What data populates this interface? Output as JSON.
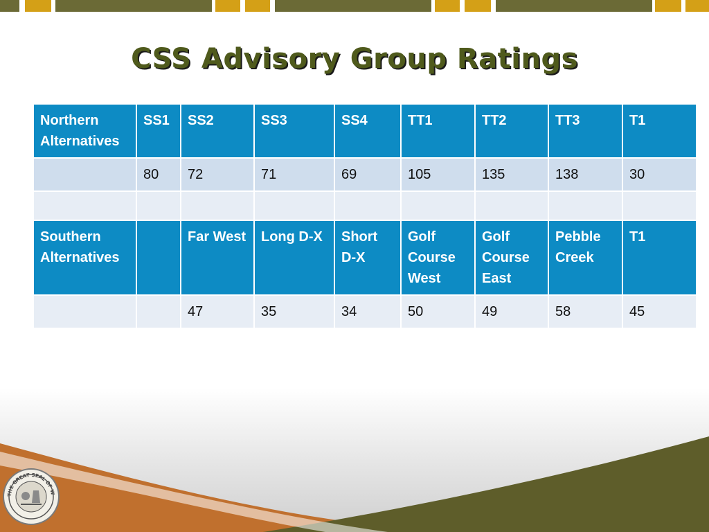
{
  "slide": {
    "title": "CSS Advisory Group Ratings"
  },
  "table": {
    "northern_header": [
      "Northern Alternatives",
      "SS1",
      "SS2",
      "SS3",
      "SS4",
      "TT1",
      "TT2",
      "TT3",
      "T1"
    ],
    "northern_values": [
      "",
      "80",
      "72",
      "71",
      "69",
      "105",
      "135",
      "138",
      "30"
    ],
    "blank_row": [
      "",
      "",
      "",
      "",
      "",
      "",
      "",
      "",
      ""
    ],
    "southern_header": [
      "Southern Alternatives",
      "",
      "Far West",
      "Long D-X",
      "Short D-X",
      "Golf Course West",
      "Golf Course East",
      "Pebble Creek",
      "T1"
    ],
    "southern_values": [
      "",
      "",
      "47",
      "35",
      "34",
      "50",
      "49",
      "58",
      "45"
    ]
  },
  "seal": {
    "text": "THE GREAT SEAL OF WAUKESHA COUNTY"
  },
  "colors": {
    "header_blue": "#0d8bc4",
    "row_light": "#cfdded",
    "row_lighter": "#e7edf5",
    "title_olive": "#4f5a1c",
    "bar_olive": "#6b6a36",
    "bar_gold": "#d4a017",
    "swoosh_orange": "#c0702e",
    "swoosh_olive": "#5e5d2a"
  }
}
